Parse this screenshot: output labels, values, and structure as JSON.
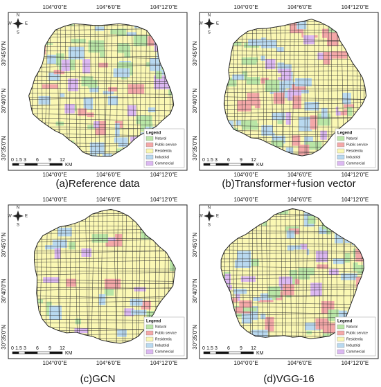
{
  "compass": {
    "n": "N",
    "s": "S",
    "w": "W",
    "e": "E"
  },
  "lon_labels": [
    "104°0'0\"E",
    "104°6'0\"E",
    "104°12'0\"E"
  ],
  "lat_labels": [
    "30°45'0\"N",
    "30°40'0\"N",
    "30°35'0\"N"
  ],
  "legend": {
    "title": "Legend",
    "items": [
      {
        "label": "Natural",
        "color": "#b9e6a6"
      },
      {
        "label": "Public service",
        "color": "#f4a8a8"
      },
      {
        "label": "Residentia",
        "color": "#fbf8b4"
      },
      {
        "label": "Industrial",
        "color": "#b9d9f0"
      },
      {
        "label": "Commercial",
        "color": "#dcb8f2"
      }
    ]
  },
  "scale": {
    "ticks": [
      "0",
      "1.5",
      "3",
      "6",
      "9",
      "12"
    ],
    "unit": "KM"
  },
  "panels": [
    {
      "caption": "(a)Reference data",
      "lat_sides": [
        "left"
      ]
    },
    {
      "caption": "(b)Transformer+fusion vector",
      "lat_sides": [
        "left",
        "right"
      ]
    },
    {
      "caption": "(c)GCN",
      "lat_sides": [
        "left"
      ]
    },
    {
      "caption": "(d)VGG-16",
      "lat_sides": [
        "left",
        "right"
      ]
    }
  ]
}
